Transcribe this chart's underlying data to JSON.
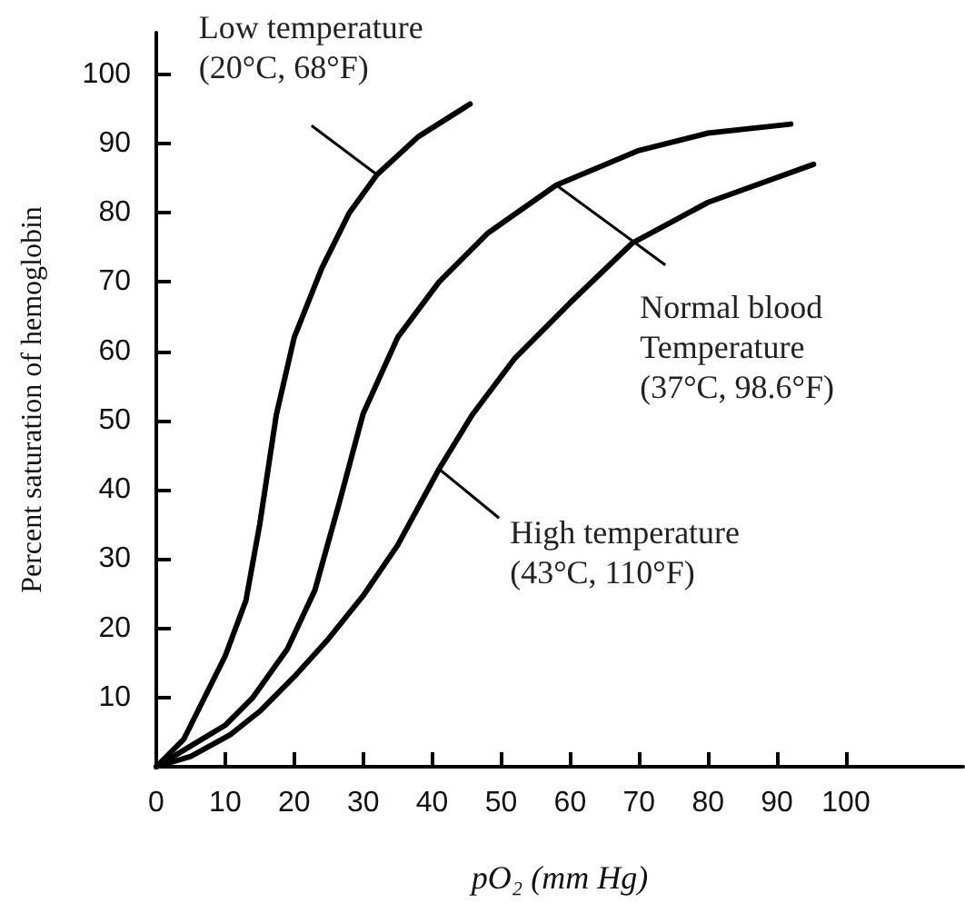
{
  "chart_data": {
    "type": "line",
    "xlabel": "pO₂ (mm Hg)",
    "ylabel": "Percent saturation of hemoglobin",
    "xlim": [
      0,
      117
    ],
    "xticks": [
      0,
      10,
      20,
      30,
      40,
      50,
      60,
      70,
      80,
      90,
      100
    ],
    "ylim": [
      0,
      106
    ],
    "yticks": [
      10,
      20,
      30,
      40,
      50,
      60,
      70,
      80,
      90,
      100
    ],
    "grid": false,
    "marker": "none",
    "line_style": "solid",
    "series": [
      {
        "color": "#000000",
        "x": [
          0,
          4,
          7,
          10,
          13,
          15,
          17.4,
          20,
          24,
          28,
          32,
          38,
          45.5
        ],
        "values": [
          0,
          4,
          10,
          16,
          24,
          35,
          50.8,
          62,
          72,
          80,
          85.5,
          91,
          95.7
        ]
      },
      {
        "color": "#000000",
        "x": [
          0,
          5,
          10,
          14,
          19,
          23,
          26.5,
          30,
          35,
          41,
          48,
          58,
          70,
          80,
          92
        ],
        "values": [
          0,
          3,
          6,
          10,
          17,
          25.5,
          38,
          51,
          62,
          70,
          77,
          84,
          89,
          91.5,
          92.8
        ]
      },
      {
        "color": "#000000",
        "x": [
          0,
          5,
          10.7,
          15,
          20,
          25,
          30,
          35,
          41,
          45.8,
          52,
          60,
          69,
          80,
          95.3
        ],
        "values": [
          0,
          1.5,
          4.6,
          8,
          13,
          18.5,
          24.7,
          32,
          43,
          50.8,
          59,
          67,
          75.6,
          81.5,
          87
        ]
      }
    ],
    "annotations": [
      {
        "text": "Low temperature\n(20°C, 68°F)",
        "x": 32,
        "y": 85.5
      },
      {
        "text": "Normal blood\nTemperature\n(37°C, 98.6°F)",
        "x": 58,
        "y": 84
      },
      {
        "text": "High temperature\n(43°C, 110°F)",
        "x": 41,
        "y": 43
      }
    ]
  }
}
